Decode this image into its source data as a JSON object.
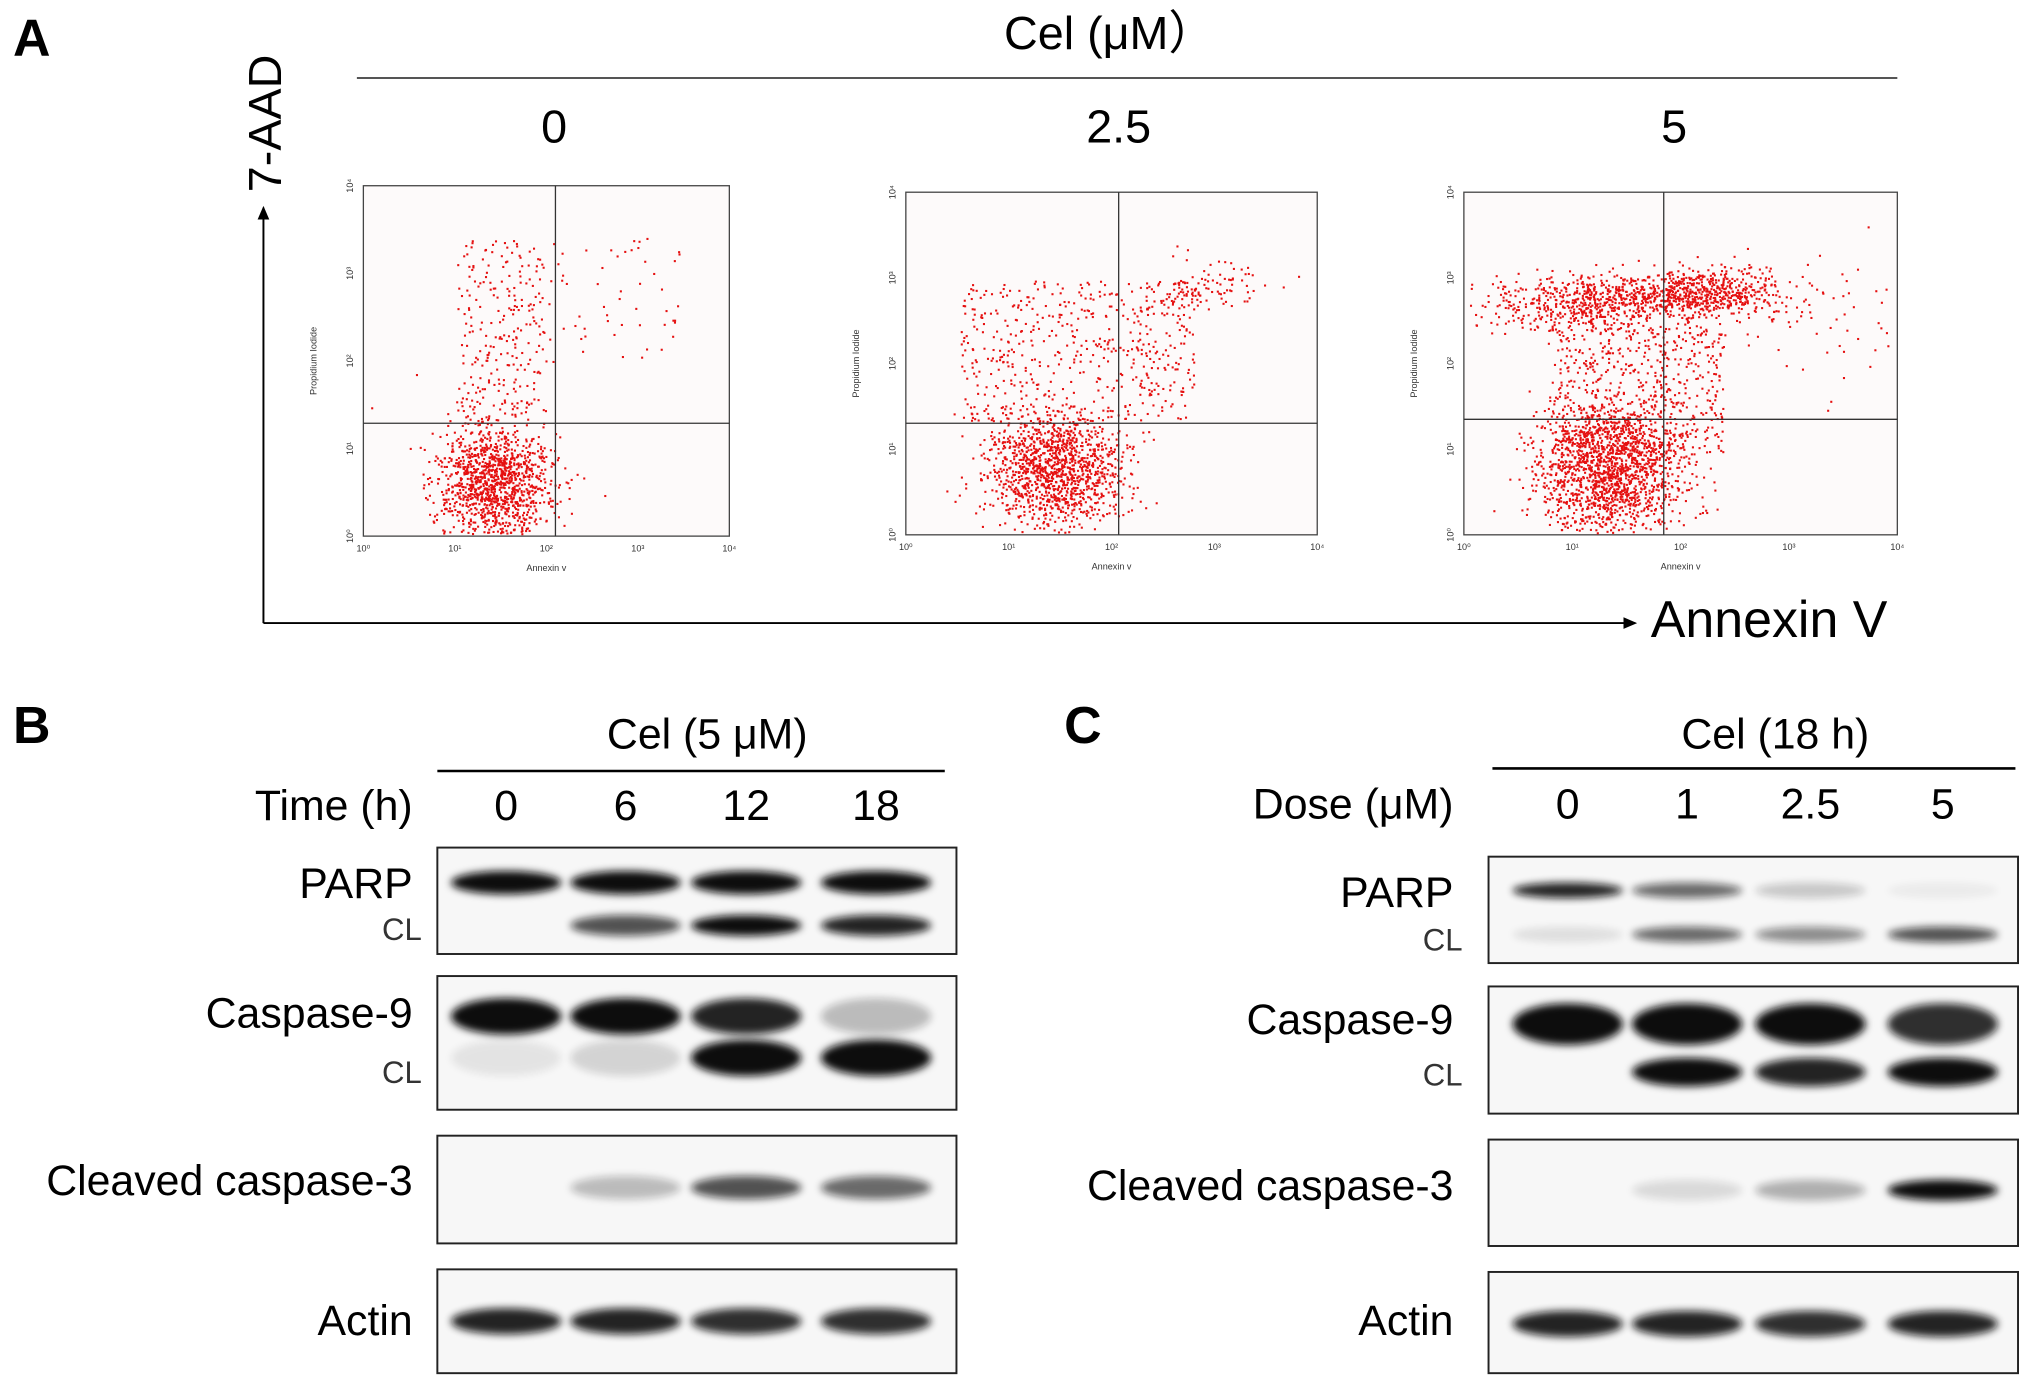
{
  "panel_a": {
    "letter": "A",
    "title": "Cel (μM）",
    "doses": [
      "0",
      "2.5",
      "5"
    ],
    "y_axis": "7-AAD",
    "x_axis": "Annexin V",
    "plot_ylabel": "Propidium Iodide",
    "plot_xlabel": "Annexin v",
    "ticks": [
      "10⁰",
      "10¹",
      "10²",
      "10³",
      "10⁴"
    ]
  },
  "panel_b": {
    "letter": "B",
    "title": "Cel (5 μM)",
    "lane_label": "Time (h)",
    "lanes": [
      "0",
      "6",
      "12",
      "18"
    ],
    "rows": [
      "PARP",
      "CL",
      "Caspase-9",
      "CL",
      "Cleaved caspase-3",
      "Actin"
    ]
  },
  "panel_c": {
    "letter": "C",
    "title": "Cel (18 h)",
    "lane_label": "Dose (μM)",
    "lanes": [
      "0",
      "1",
      "2.5",
      "5"
    ],
    "rows": [
      "PARP",
      "CL",
      "Caspase-9",
      "CL",
      "Cleaved caspase-3",
      "Actin"
    ]
  }
}
